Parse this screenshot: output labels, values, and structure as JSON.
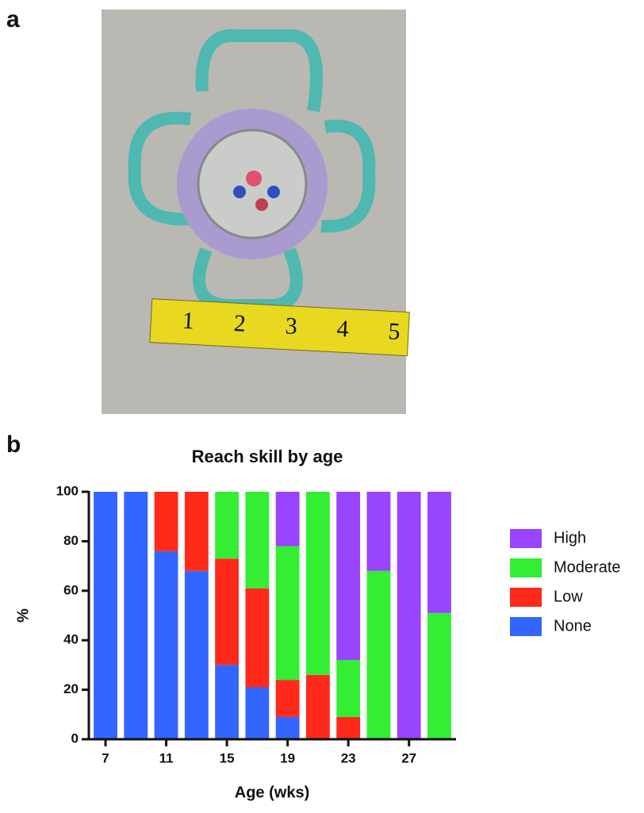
{
  "panel_labels": [
    "a",
    "b"
  ],
  "photo": {
    "tape_numbers": [
      "1",
      "2",
      "3",
      "4",
      "5"
    ]
  },
  "chart_data": {
    "type": "stacked_bar",
    "title": "Reach skill by age",
    "x_label": "Age (wks)",
    "y_label": "%",
    "x": [
      7,
      9,
      11,
      13,
      15,
      17,
      19,
      21,
      23,
      25,
      27,
      29
    ],
    "xlim": [
      5.9,
      30.1
    ],
    "xticks": [
      7,
      11,
      15,
      19,
      23,
      27
    ],
    "ylim": [
      0,
      100
    ],
    "yticks": [
      0,
      20,
      40,
      60,
      80,
      100
    ],
    "legend": "right",
    "series": [
      {
        "name": "None",
        "color": "#3366ff",
        "values": [
          100,
          100,
          76,
          68,
          30,
          21,
          9,
          0,
          0,
          0,
          0,
          0
        ]
      },
      {
        "name": "Low",
        "color": "#ff2a1a",
        "values": [
          0,
          0,
          24,
          32,
          43,
          40,
          15,
          26,
          9,
          0,
          0,
          0
        ]
      },
      {
        "name": "Moderate",
        "color": "#33ee33",
        "values": [
          0,
          0,
          0,
          0,
          27,
          39,
          54,
          74,
          23,
          68,
          0,
          51
        ]
      },
      {
        "name": "High",
        "color": "#9944ff",
        "values": [
          0,
          0,
          0,
          0,
          0,
          0,
          22,
          0,
          68,
          32,
          100,
          49
        ]
      }
    ]
  }
}
